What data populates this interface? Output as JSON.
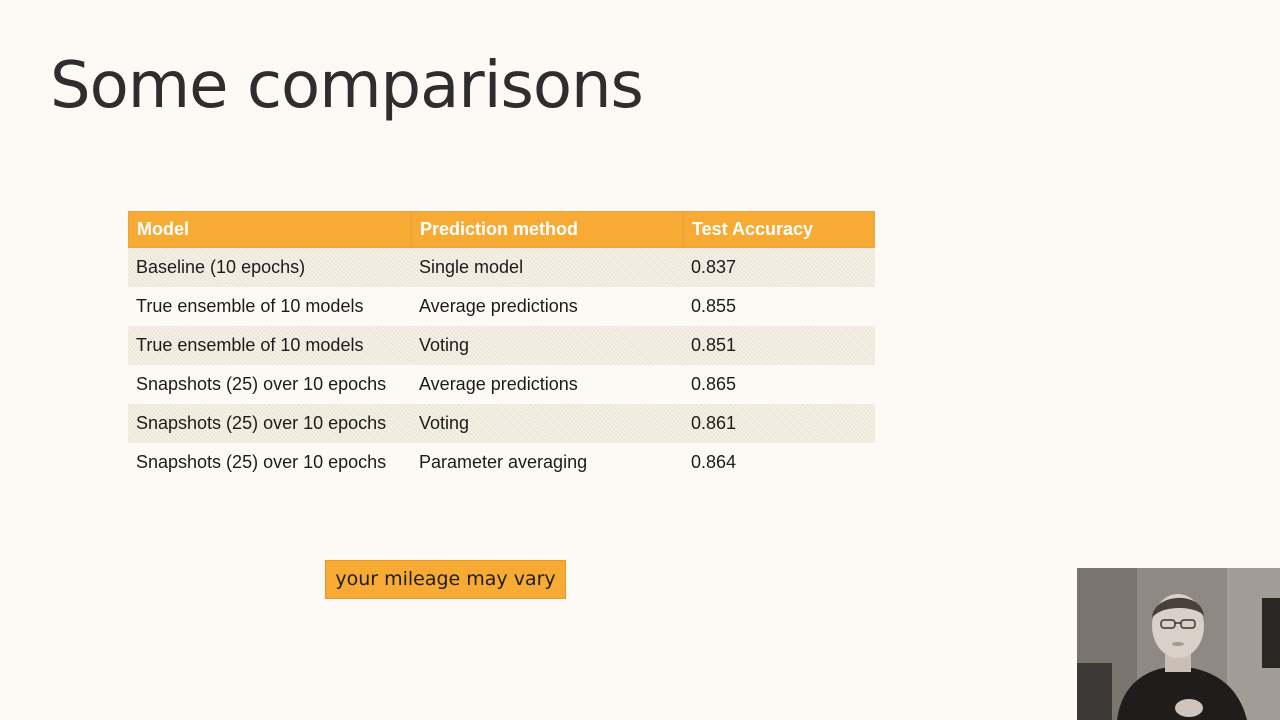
{
  "slide": {
    "title": "Some comparisons"
  },
  "table": {
    "headers": {
      "model": "Model",
      "method": "Prediction method",
      "accuracy": "Test Accuracy"
    },
    "rows": [
      {
        "model": "Baseline (10 epochs)",
        "method": "Single model",
        "accuracy": "0.837"
      },
      {
        "model": "True ensemble of 10 models",
        "method": "Average predictions",
        "accuracy": "0.855"
      },
      {
        "model": "True ensemble of 10 models",
        "method": "Voting",
        "accuracy": "0.851"
      },
      {
        "model": "Snapshots (25) over 10 epochs",
        "method": "Average predictions",
        "accuracy": "0.865"
      },
      {
        "model": "Snapshots (25) over 10 epochs",
        "method": "Voting",
        "accuracy": "0.861"
      },
      {
        "model": "Snapshots (25) over 10 epochs",
        "method": "Parameter averaging",
        "accuracy": "0.864"
      }
    ]
  },
  "callout": {
    "text": "your mileage may vary"
  },
  "colors": {
    "background": "#fdfaf5",
    "header_fill": "#f7ab35",
    "callout_fill": "#f7ab35",
    "title_text": "#2e2e2e"
  }
}
